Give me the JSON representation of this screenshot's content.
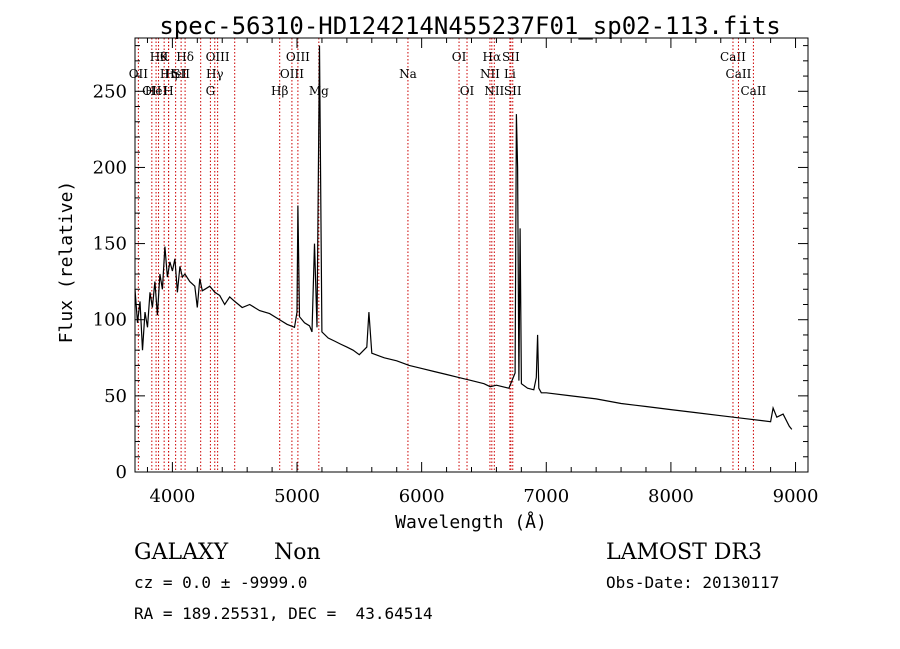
{
  "chart_data": {
    "type": "line",
    "title": "spec-56310-HD124214N455237F01_sp02-113.fits",
    "xlabel": "Wavelength (Å)",
    "ylabel": "Flux (relative)",
    "xlim": [
      3700,
      9100
    ],
    "ylim": [
      0,
      285
    ],
    "x_ticks": [
      4000,
      5000,
      6000,
      7000,
      8000,
      9000
    ],
    "y_ticks": [
      0,
      50,
      100,
      150,
      200,
      250
    ],
    "x_tick_labels": [
      "4000",
      "5000",
      "6000",
      "7000",
      "8000",
      "9000"
    ],
    "y_tick_labels": [
      "0",
      "50",
      "100",
      "150",
      "200",
      "250"
    ],
    "series": [
      {
        "name": "spectrum",
        "x": [
          3700,
          3720,
          3740,
          3760,
          3780,
          3800,
          3820,
          3840,
          3860,
          3880,
          3900,
          3920,
          3940,
          3960,
          3980,
          4000,
          4020,
          4040,
          4060,
          4080,
          4100,
          4140,
          4180,
          4200,
          4220,
          4240,
          4260,
          4300,
          4340,
          4380,
          4420,
          4460,
          4500,
          4560,
          4620,
          4700,
          4780,
          4860,
          4920,
          4980,
          5000,
          5007,
          5020,
          5060,
          5100,
          5120,
          5140,
          5160,
          5180,
          5200,
          5250,
          5300,
          5350,
          5400,
          5450,
          5500,
          5560,
          5577,
          5600,
          5700,
          5800,
          5900,
          6000,
          6100,
          6200,
          6300,
          6400,
          6500,
          6550,
          6600,
          6700,
          6750,
          6760,
          6770,
          6780,
          6790,
          6800,
          6850,
          6900,
          6920,
          6930,
          6940,
          6960,
          7000,
          7200,
          7400,
          7600,
          7800,
          8000,
          8200,
          8400,
          8600,
          8800,
          8820,
          8850,
          8900,
          8950,
          8970
        ],
        "y": [
          120,
          98,
          112,
          80,
          105,
          95,
          118,
          108,
          125,
          103,
          130,
          120,
          148,
          128,
          138,
          132,
          140,
          118,
          135,
          128,
          130,
          125,
          122,
          108,
          127,
          119,
          120,
          122,
          118,
          116,
          110,
          115,
          112,
          108,
          110,
          106,
          104,
          100,
          97,
          95,
          105,
          175,
          102,
          98,
          96,
          92,
          150,
          95,
          280,
          92,
          88,
          86,
          84,
          82,
          80,
          77,
          82,
          105,
          78,
          75,
          73,
          70,
          68,
          66,
          64,
          62,
          60,
          58,
          56,
          57,
          55,
          65,
          235,
          200,
          60,
          160,
          58,
          55,
          54,
          62,
          90,
          55,
          52,
          52,
          50,
          48,
          45,
          43,
          41,
          39,
          37,
          35,
          33,
          42,
          36,
          38,
          30,
          28
        ]
      }
    ],
    "spectral_lines": [
      {
        "wavelength": 3727,
        "top": "OII",
        "row": 1
      },
      {
        "wavelength": 3835,
        "top": "OII",
        "row": 2
      },
      {
        "wavelength": 3869,
        "top": "HeI",
        "row": 2
      },
      {
        "wavelength": 3889,
        "top": "Hθ",
        "row": 0
      },
      {
        "wavelength": 3934,
        "top": "K",
        "row": 0
      },
      {
        "wavelength": 3970,
        "top": "Hη",
        "row": 1
      },
      {
        "wavelength": 4026,
        "top": "HeI",
        "row": 1
      },
      {
        "wavelength": 3969,
        "top": "H",
        "row": 2
      },
      {
        "wavelength": 4102,
        "top": "Hδ",
        "row": 0
      },
      {
        "wavelength": 4070,
        "top": "SII",
        "row": 1
      },
      {
        "wavelength": 4227,
        "top": "",
        "row": 0
      },
      {
        "wavelength": 4340,
        "top": "Hγ",
        "row": 1
      },
      {
        "wavelength": 4363,
        "top": "OIII",
        "row": 0
      },
      {
        "wavelength": 4305,
        "top": "G",
        "row": 2
      },
      {
        "wavelength": 4500,
        "top": "",
        "row": 0
      },
      {
        "wavelength": 4861,
        "top": "Hβ",
        "row": 2
      },
      {
        "wavelength": 4959,
        "top": "OIII",
        "row": 1
      },
      {
        "wavelength": 5007,
        "top": "OIII",
        "row": 0
      },
      {
        "wavelength": 5175,
        "top": "Mg",
        "row": 2
      },
      {
        "wavelength": 5890,
        "top": "Na",
        "row": 1
      },
      {
        "wavelength": 6300,
        "top": "OI",
        "row": 0
      },
      {
        "wavelength": 6364,
        "top": "OI",
        "row": 2
      },
      {
        "wavelength": 6548,
        "top": "NII",
        "row": 1
      },
      {
        "wavelength": 6563,
        "top": "Hα",
        "row": 0
      },
      {
        "wavelength": 6583,
        "top": "NII",
        "row": 2
      },
      {
        "wavelength": 6708,
        "top": "Li",
        "row": 1
      },
      {
        "wavelength": 6716,
        "top": "SII",
        "row": 0
      },
      {
        "wavelength": 6731,
        "top": "SII",
        "row": 2
      },
      {
        "wavelength": 8498,
        "top": "CaII",
        "row": 0
      },
      {
        "wavelength": 8542,
        "top": "CaII",
        "row": 1
      },
      {
        "wavelength": 8662,
        "top": "CaII",
        "row": 2
      }
    ]
  },
  "info": {
    "class": "GALAXY",
    "subclass": "Non",
    "survey": "LAMOST DR3",
    "cz": "cz = 0.0 ± -9999.0",
    "obs_date": "Obs-Date: 20130117",
    "radec": "RA = 189.25531, DEC =  43.64514"
  },
  "colors": {
    "line": "#000000",
    "marker": "#cc0000"
  }
}
